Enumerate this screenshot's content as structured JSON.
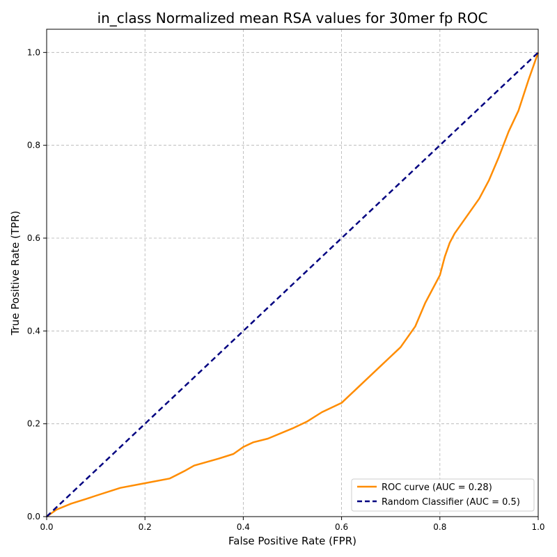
{
  "chart_data": {
    "type": "line",
    "title": "in_class Normalized mean RSA values for 30mer fp ROC",
    "xlabel": "False Positive Rate (FPR)",
    "ylabel": "True Positive Rate (TPR)",
    "xlim": [
      0.0,
      1.0
    ],
    "ylim": [
      0.0,
      1.05
    ],
    "xticks": [
      "0.0",
      "0.2",
      "0.4",
      "0.6",
      "0.8",
      "1.0"
    ],
    "yticks": [
      "0.0",
      "0.2",
      "0.4",
      "0.6",
      "0.8",
      "1.0"
    ],
    "grid": true,
    "legend_position": "bottom-right",
    "series": [
      {
        "name": "ROC curve (AUC = 0.28)",
        "color": "#ff8c00",
        "style": "solid",
        "x": [
          0.0,
          0.02,
          0.05,
          0.08,
          0.1,
          0.15,
          0.2,
          0.25,
          0.28,
          0.3,
          0.35,
          0.38,
          0.4,
          0.42,
          0.45,
          0.5,
          0.53,
          0.56,
          0.6,
          0.62,
          0.65,
          0.68,
          0.7,
          0.72,
          0.75,
          0.77,
          0.78,
          0.8,
          0.81,
          0.82,
          0.83,
          0.85,
          0.87,
          0.88,
          0.9,
          0.92,
          0.94,
          0.96,
          0.98,
          0.99,
          1.0
        ],
        "y": [
          0.0,
          0.015,
          0.028,
          0.038,
          0.045,
          0.062,
          0.072,
          0.082,
          0.098,
          0.11,
          0.125,
          0.135,
          0.15,
          0.16,
          0.168,
          0.19,
          0.205,
          0.225,
          0.245,
          0.265,
          0.295,
          0.325,
          0.345,
          0.365,
          0.41,
          0.46,
          0.48,
          0.52,
          0.56,
          0.59,
          0.61,
          0.64,
          0.67,
          0.685,
          0.725,
          0.775,
          0.83,
          0.875,
          0.94,
          0.97,
          1.0
        ]
      },
      {
        "name": "Random Classifier (AUC = 0.5)",
        "color": "#000080",
        "style": "dashed",
        "x": [
          0.0,
          1.0
        ],
        "y": [
          0.0,
          1.0
        ]
      }
    ]
  }
}
